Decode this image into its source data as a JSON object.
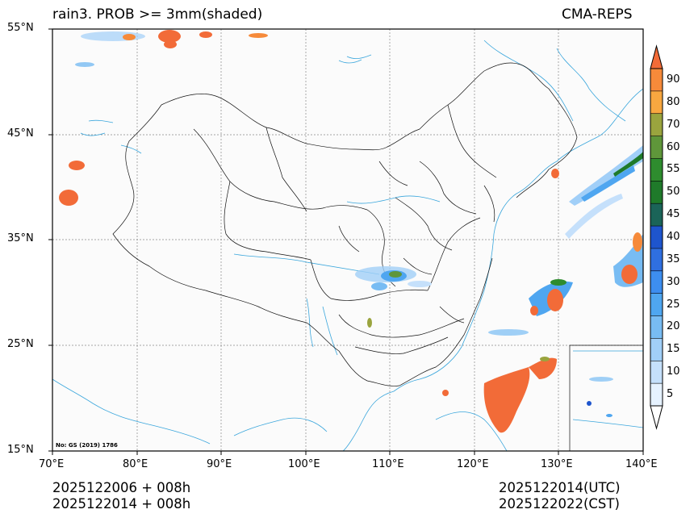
{
  "header": {
    "title": "rain3. PROB >= 3mm(shaded)",
    "model": "CMA-REPS"
  },
  "axes": {
    "lat_labels": [
      "55°N",
      "45°N",
      "35°N",
      "25°N",
      "15°N"
    ],
    "lon_labels": [
      "70°E",
      "80°E",
      "90°E",
      "100°E",
      "110°E",
      "120°E",
      "130°E",
      "140°E"
    ]
  },
  "map": {
    "extent": {
      "lon_min": 70,
      "lon_max": 140,
      "lat_min": 15,
      "lat_max": 55
    },
    "approval_no": "No: GS (2019) 1786"
  },
  "colorbar": {
    "levels": [
      "5",
      "10",
      "15",
      "20",
      "25",
      "30",
      "35",
      "40",
      "45",
      "50",
      "55",
      "60",
      "70",
      "80",
      "90"
    ],
    "colors": [
      "#e6f2ff",
      "#c5e0fb",
      "#a1cff8",
      "#78bcf3",
      "#4fa6f0",
      "#3d8ef0",
      "#2f6fe0",
      "#1e55cd",
      "#1b6458",
      "#1f7a2a",
      "#2e8c2e",
      "#5f963a",
      "#9aa43e",
      "#f8a740",
      "#f68a3a"
    ],
    "over_color": "#f26b38"
  },
  "footer": {
    "init_utc": "2025122006  +  008h",
    "init_cst": "2025122014  +  008h",
    "valid_utc": "2025122014(UTC)",
    "valid_cst": "2025122022(CST)"
  }
}
